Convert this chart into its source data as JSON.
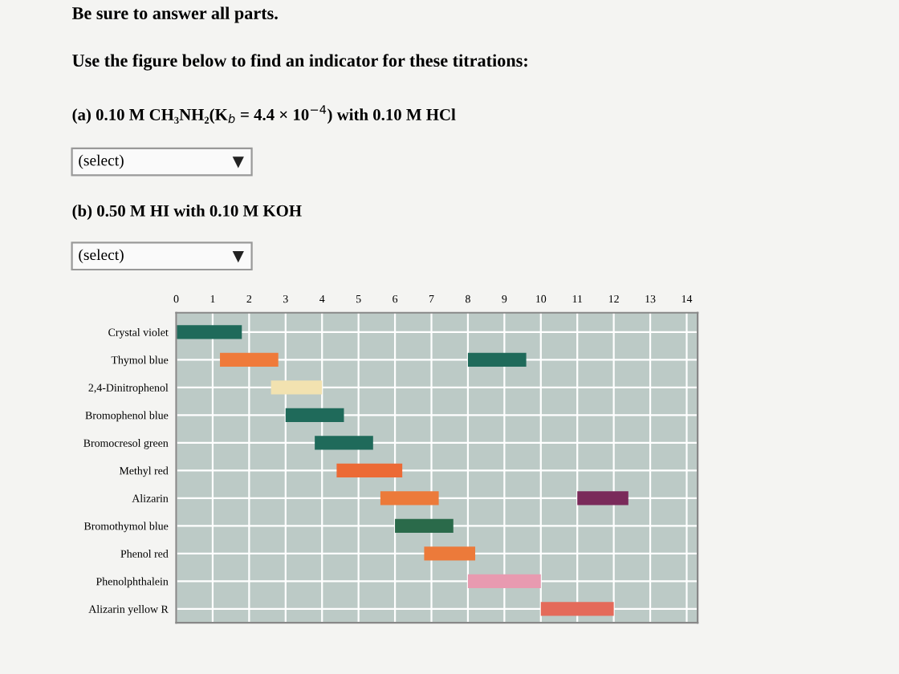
{
  "chart_data": {
    "type": "bar",
    "orientation": "horizontal",
    "title": "Be sure to answer all parts.",
    "subtitle": "Use the figure below to find an indicator for these titrations:",
    "annotations": [
      "(a) 0.10 M CH₃NH₂(K$_{b}$ = 4.4 × 10$^{−4}$) with 0.10 M HCl",
      "(select)",
      "(b) 0.50 M HI with 0.10 M KOH",
      "(select)"
    ],
    "categories": [
      "Crystal violet",
      "Thymol blue",
      "2,4-Dinitrophenol",
      "Bromophenol blue",
      "Bromocresol green",
      "Methyl red",
      "Alizarin",
      "Bromothymol blue",
      "Phenol red",
      "Phenolphthalein",
      "Alizarin yellow R"
    ],
    "series": [
      {
        "base": [
          0,
          1.2,
          2.6,
          3.0,
          3.8,
          4.4,
          5.6,
          6.0,
          6.8,
          8.0,
          10.0
        ],
        "values": [
          1.8,
          1.6,
          1.4,
          1.6,
          1.6,
          1.8,
          1.6,
          1.6,
          1.4,
          2.0,
          2.0
        ],
        "colors": [
          "#1f6a5a",
          "#ef7a3a",
          "#f2e2b0",
          "#1f6a5a",
          "#1f6a5a",
          "#ec6a35",
          "#ec7a3a",
          "#2a6a4a",
          "#ec7a3a",
          "#e89ab0",
          "#e46a5a"
        ]
      },
      {
        "base": [
          null,
          8.0,
          null,
          null,
          null,
          null,
          11.0,
          null,
          null,
          null,
          null
        ],
        "values": [
          null,
          1.6,
          null,
          null,
          null,
          null,
          1.4,
          null,
          null,
          null,
          null
        ],
        "colors": [
          "#1f6a5a",
          "#1f6a5a",
          "#1f6a5a",
          "#1f6a5a",
          "#1f6a5a",
          "#1f6a5a",
          "#7a2a5a",
          "#1f6a5a",
          "#1f6a5a",
          "#1f6a5a",
          "#1f6a5a"
        ]
      }
    ],
    "xlim": [
      0,
      14.3
    ],
    "xticks": [
      0,
      1,
      2,
      3,
      4,
      5,
      6,
      7,
      8,
      9,
      10,
      11,
      12,
      13,
      14
    ],
    "grid": true
  }
}
